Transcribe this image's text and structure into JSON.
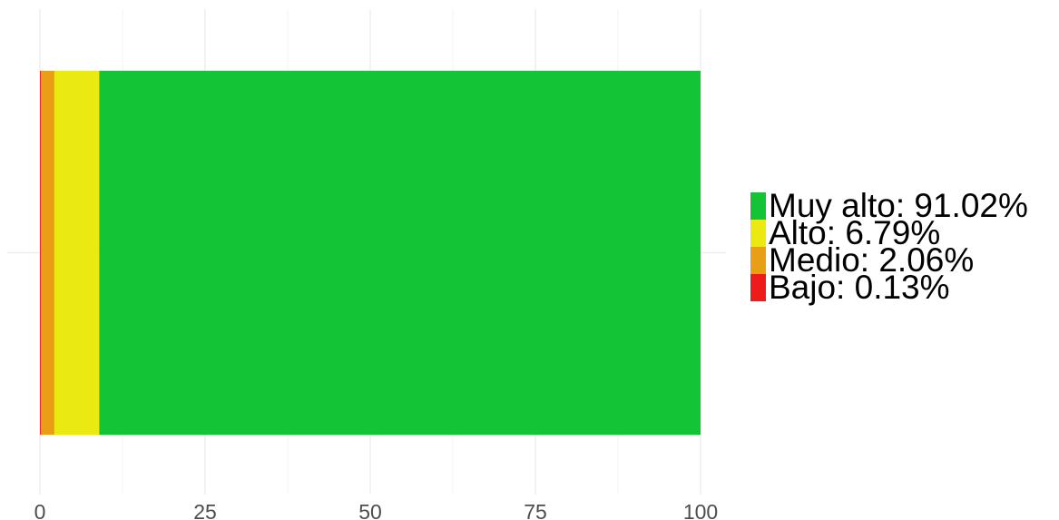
{
  "chart_data": {
    "type": "bar",
    "orientation": "horizontal",
    "stacked": true,
    "percent": true,
    "title": "",
    "xlabel": "",
    "ylabel": "",
    "xlim": [
      0,
      100
    ],
    "xticks": [
      0,
      25,
      50,
      75,
      100
    ],
    "grid": true,
    "legend_position": "right",
    "segments": [
      {
        "name": "Bajo",
        "value": 0.13,
        "color": "#ee1b1b"
      },
      {
        "name": "Medio",
        "value": 2.06,
        "color": "#e99f15"
      },
      {
        "name": "Alto",
        "value": 6.79,
        "color": "#eaea12"
      },
      {
        "name": "Muy alto",
        "value": 91.02,
        "color": "#12c436"
      }
    ],
    "legend": [
      {
        "label": "Muy alto: 91.02%",
        "color": "#12c436"
      },
      {
        "label": "Alto: 6.79%",
        "color": "#eaea12"
      },
      {
        "label": "Medio: 2.06%",
        "color": "#e99f15"
      },
      {
        "label": "Bajo: 0.13%",
        "color": "#ee1b1b"
      }
    ]
  }
}
